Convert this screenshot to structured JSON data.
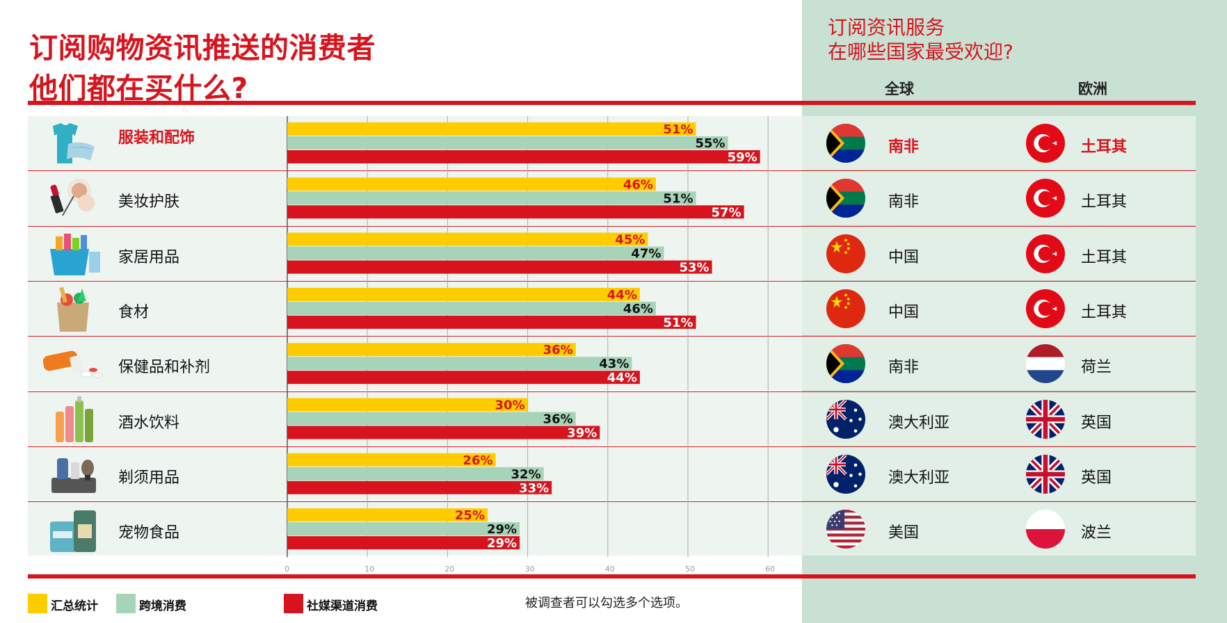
{
  "title_line1": "订阅购物资讯推送的消费者",
  "title_line2": "他们都在买什么?",
  "right_title_line1": "订阅资讯服务",
  "right_title_line2": "在哪些国家最受欢迎?",
  "col_global": "全球",
  "col_europe": "欧洲",
  "legend": [
    {
      "label": "汇总统计",
      "color": "#ffcc00"
    },
    {
      "label": "跨境消费",
      "color": "#a7d3b8"
    },
    {
      "label": "社媒渠道消费",
      "color": "#d7141e"
    }
  ],
  "note": "被调查者可以勾选多个选项。",
  "rows": [
    {
      "category": "服装和配饰",
      "icon": "clothing-icon",
      "global": "南非",
      "global_flag": "south-africa-flag-icon",
      "europe": "土耳其",
      "europe_flag": "turkey-flag-icon",
      "highlight": true
    },
    {
      "category": "美妆护肤",
      "icon": "cosmetics-icon",
      "global": "南非",
      "global_flag": "south-africa-flag-icon",
      "europe": "土耳其",
      "europe_flag": "turkey-flag-icon"
    },
    {
      "category": "家居用品",
      "icon": "household-cleaning-icon",
      "global": "中国",
      "global_flag": "china-flag-icon",
      "europe": "土耳其",
      "europe_flag": "turkey-flag-icon"
    },
    {
      "category": "食材",
      "icon": "groceries-bag-icon",
      "global": "中国",
      "global_flag": "china-flag-icon",
      "europe": "土耳其",
      "europe_flag": "turkey-flag-icon"
    },
    {
      "category": "保健品和补剂",
      "icon": "pills-icon",
      "global": "南非",
      "global_flag": "south-africa-flag-icon",
      "europe": "荷兰",
      "europe_flag": "netherlands-flag-icon"
    },
    {
      "category": "酒水饮料",
      "icon": "bottles-icon",
      "global": "澳大利亚",
      "global_flag": "australia-flag-icon",
      "europe": "英国",
      "europe_flag": "uk-flag-icon"
    },
    {
      "category": "剃须用品",
      "icon": "shaving-kit-icon",
      "global": "澳大利亚",
      "global_flag": "australia-flag-icon",
      "europe": "英国",
      "europe_flag": "uk-flag-icon"
    },
    {
      "category": "宠物食品",
      "icon": "pet-food-icon",
      "global": "美国",
      "global_flag": "usa-flag-icon",
      "europe": "波兰",
      "europe_flag": "poland-flag-icon"
    }
  ],
  "chart_data": {
    "type": "bar",
    "orientation": "horizontal",
    "categories": [
      "服装和配饰",
      "美妆护肤",
      "家居用品",
      "食材",
      "保健品和补剂",
      "酒水饮料",
      "剃须用品",
      "宠物食品"
    ],
    "series": [
      {
        "name": "汇总统计",
        "color": "#ffcc00",
        "values": [
          51,
          46,
          45,
          44,
          36,
          30,
          26,
          25
        ]
      },
      {
        "name": "跨境消费",
        "color": "#a7d3b8",
        "values": [
          55,
          51,
          47,
          46,
          43,
          36,
          32,
          29
        ]
      },
      {
        "name": "社媒渠道消费",
        "color": "#d7141e",
        "values": [
          59,
          57,
          53,
          51,
          44,
          39,
          33,
          29
        ]
      }
    ],
    "value_suffix": "%",
    "xlim": [
      0,
      60
    ],
    "xticks": [
      0,
      10,
      20,
      30,
      40,
      50,
      60
    ],
    "grid": true
  }
}
